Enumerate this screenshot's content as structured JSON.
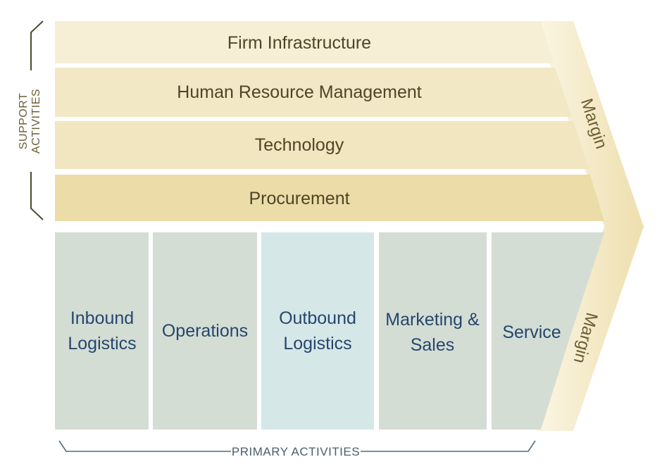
{
  "support_activities": {
    "label_line1": "SUPPORT",
    "label_line2": "ACTIVITIES",
    "rows": [
      {
        "label": "Firm Infrastructure"
      },
      {
        "label": "Human Resource Management"
      },
      {
        "label": "Technology"
      },
      {
        "label": "Procurement"
      }
    ]
  },
  "primary_activities": {
    "label": "PRIMARY ACTIVITIES",
    "columns": [
      {
        "line1": "Inbound",
        "line2": "Logistics"
      },
      {
        "line1": "Operations",
        "line2": ""
      },
      {
        "line1": "Outbound",
        "line2": "Logistics"
      },
      {
        "line1": "Marketing &",
        "line2": "Sales"
      },
      {
        "line1": "Service",
        "line2": ""
      }
    ]
  },
  "margin": {
    "top_label": "Margin",
    "bottom_label": "Margin"
  },
  "colors": {
    "support_row_light": "#f6efd6",
    "support_row_mid": "#f1e6bf",
    "support_row_dark": "#ebdca8",
    "primary_column": "#d3ddd4",
    "primary_column_highlight": "#d6e7e8",
    "margin_arrow": "#efe0b0",
    "bracket_gold": "#4b4a2e",
    "bracket_blue": "#4e6a7a"
  }
}
